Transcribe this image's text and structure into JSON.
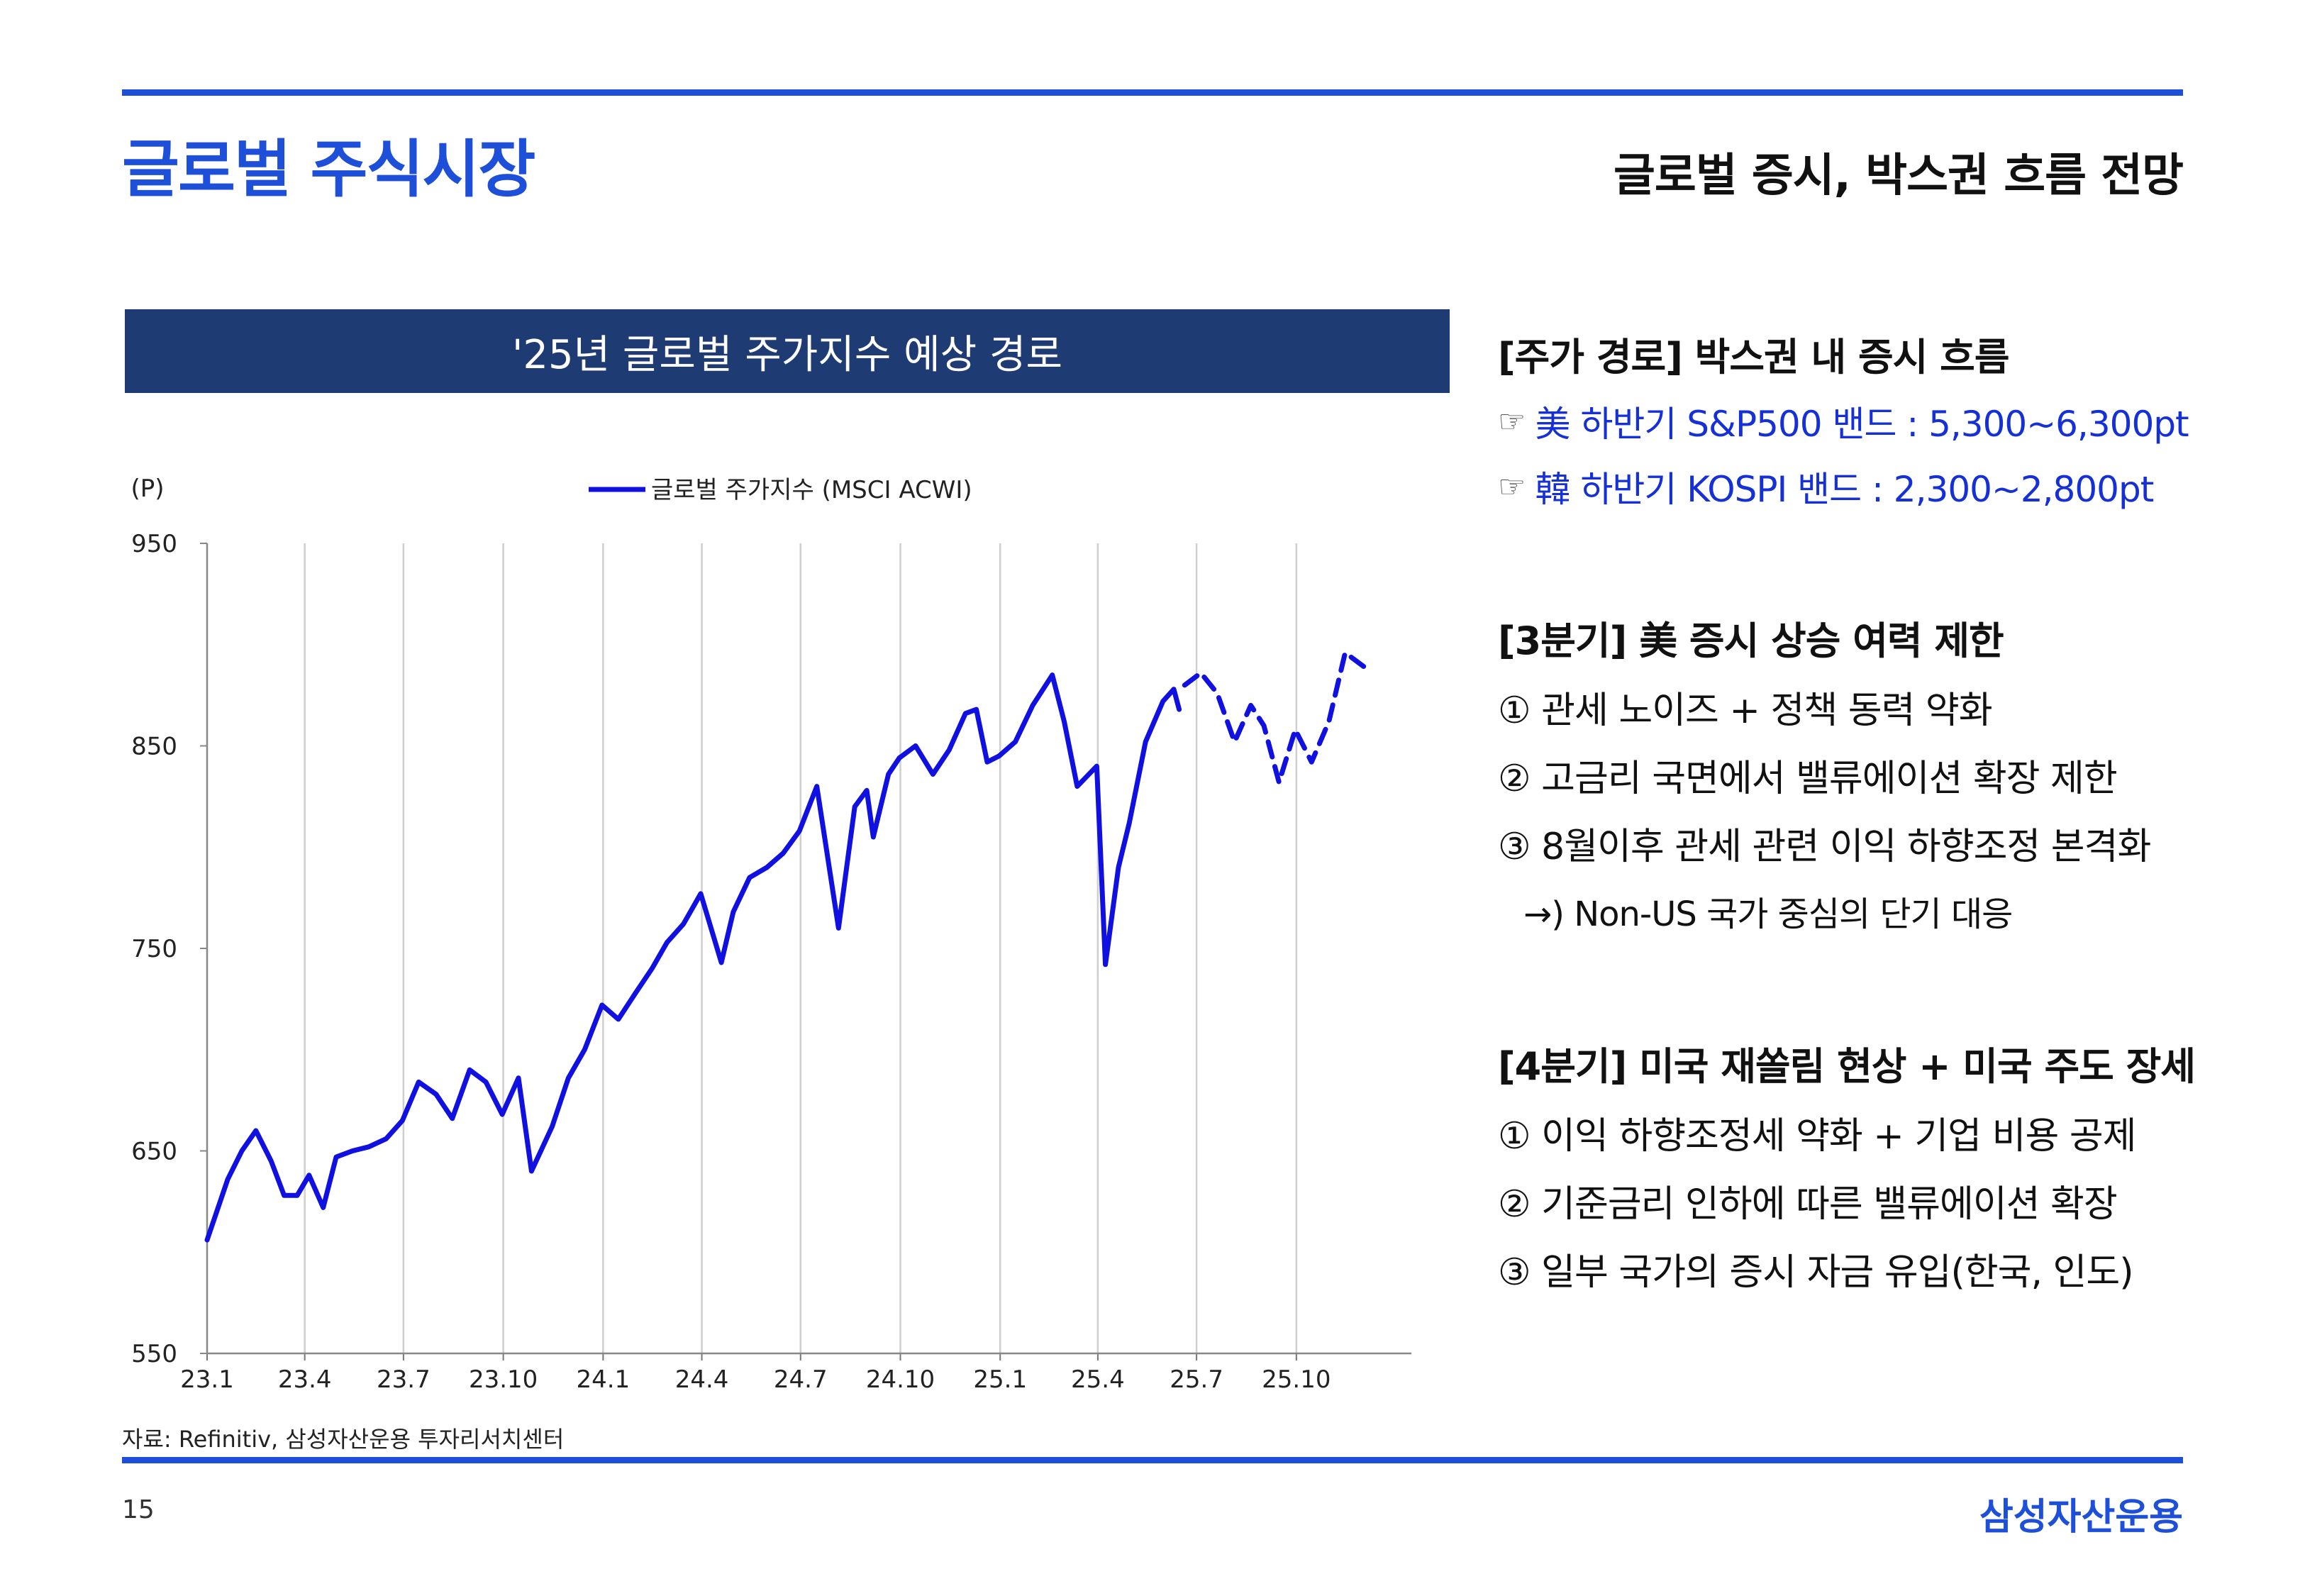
{
  "page": {
    "title": "글로벌 주식시장",
    "subtitle": "글로벌 증시, 박스권 흐름 전망",
    "page_number": "15",
    "brand": "삼성자산운용",
    "source": "자료: Refinitiv, 삼성자산운용 투자리서치센터"
  },
  "colors": {
    "accent": "#1d4fd8",
    "header_bg": "#1f3b73",
    "series_line": "#1010e0",
    "highlight_text": "#1530d6"
  },
  "chart_header": "'25년 글로벌 주가지수 예상 경로",
  "chart_data": {
    "type": "line",
    "title": "'25년 글로벌 주가지수 예상 경로",
    "ylabel": "(P)",
    "ylim": [
      550,
      950
    ],
    "yticks": [
      "950",
      "850",
      "750",
      "650",
      "550"
    ],
    "xticks": [
      "23.1",
      "23.4",
      "23.7",
      "23.10",
      "24.1",
      "24.4",
      "24.7",
      "24.10",
      "25.1",
      "25.4",
      "25.7",
      "25.10"
    ],
    "grid": "vertical",
    "legend_position": "top-center",
    "series": [
      {
        "name": "글로벌 주가지수 (MSCI ACWI)",
        "style": "solid",
        "points": [
          [
            "2023-01-01",
            606
          ],
          [
            "2023-01-20",
            636
          ],
          [
            "2023-02-02",
            650
          ],
          [
            "2023-02-15",
            660
          ],
          [
            "2023-03-01",
            645
          ],
          [
            "2023-03-13",
            628
          ],
          [
            "2023-03-25",
            628
          ],
          [
            "2023-04-05",
            638
          ],
          [
            "2023-04-18",
            622
          ],
          [
            "2023-04-30",
            647
          ],
          [
            "2023-05-15",
            650
          ],
          [
            "2023-05-30",
            652
          ],
          [
            "2023-06-15",
            656
          ],
          [
            "2023-06-30",
            665
          ],
          [
            "2023-07-15",
            684
          ],
          [
            "2023-07-31",
            678
          ],
          [
            "2023-08-15",
            666
          ],
          [
            "2023-08-31",
            690
          ],
          [
            "2023-09-15",
            684
          ],
          [
            "2023-09-30",
            668
          ],
          [
            "2023-10-15",
            686
          ],
          [
            "2023-10-27",
            640
          ],
          [
            "2023-11-15",
            662
          ],
          [
            "2023-11-30",
            686
          ],
          [
            "2023-12-15",
            700
          ],
          [
            "2023-12-31",
            722
          ],
          [
            "2024-01-15",
            715
          ],
          [
            "2024-01-31",
            728
          ],
          [
            "2024-02-15",
            740
          ],
          [
            "2024-02-29",
            753
          ],
          [
            "2024-03-15",
            762
          ],
          [
            "2024-03-31",
            777
          ],
          [
            "2024-04-19",
            743
          ],
          [
            "2024-04-30",
            768
          ],
          [
            "2024-05-15",
            785
          ],
          [
            "2024-05-31",
            790
          ],
          [
            "2024-06-15",
            797
          ],
          [
            "2024-06-30",
            808
          ],
          [
            "2024-07-16",
            830
          ],
          [
            "2024-08-05",
            760
          ],
          [
            "2024-08-20",
            820
          ],
          [
            "2024-08-31",
            828
          ],
          [
            "2024-09-06",
            805
          ],
          [
            "2024-09-20",
            836
          ],
          [
            "2024-09-30",
            844
          ],
          [
            "2024-10-15",
            850
          ],
          [
            "2024-10-31",
            836
          ],
          [
            "2024-11-15",
            848
          ],
          [
            "2024-11-30",
            866
          ],
          [
            "2024-12-10",
            868
          ],
          [
            "2024-12-20",
            842
          ],
          [
            "2024-12-31",
            845
          ],
          [
            "2025-01-15",
            852
          ],
          [
            "2025-01-31",
            870
          ],
          [
            "2025-02-18",
            885
          ],
          [
            "2025-03-01",
            862
          ],
          [
            "2025-03-13",
            830
          ],
          [
            "2025-03-31",
            840
          ],
          [
            "2025-04-08",
            742
          ],
          [
            "2025-04-20",
            790
          ],
          [
            "2025-04-30",
            812
          ],
          [
            "2025-05-15",
            852
          ],
          [
            "2025-05-31",
            872
          ],
          [
            "2025-06-10",
            878
          ],
          [
            "2025-06-15",
            868
          ]
        ]
      },
      {
        "name": "예상 경로",
        "style": "dashed",
        "points": [
          [
            "2025-06-20",
            880
          ],
          [
            "2025-07-05",
            886
          ],
          [
            "2025-07-20",
            876
          ],
          [
            "2025-08-05",
            852
          ],
          [
            "2025-08-20",
            870
          ],
          [
            "2025-09-01",
            860
          ],
          [
            "2025-09-15",
            832
          ],
          [
            "2025-09-30",
            858
          ],
          [
            "2025-10-15",
            842
          ],
          [
            "2025-10-31",
            862
          ],
          [
            "2025-11-15",
            896
          ],
          [
            "2025-12-05",
            888
          ]
        ]
      }
    ]
  },
  "right_panel": {
    "sections": [
      {
        "heading": "[주가 경로] 박스권 내 증시 흐름",
        "items": [
          {
            "mark": "☞",
            "text": "美 하반기 S&P500 밴드 : 5,300~6,300pt"
          },
          {
            "mark": "☞",
            "text": "韓 하반기 KOSPI 밴드 : 2,300~2,800pt"
          }
        ]
      },
      {
        "heading": "[3분기] 美 증시 상승 여력 제한",
        "items": [
          {
            "text": "① 관세 노이즈 + 정책 동력 약화"
          },
          {
            "text": "② 고금리 국면에서 밸류에이션 확장 제한"
          },
          {
            "text": "③ 8월이후 관세 관련 이익 하향조정 본격화"
          },
          {
            "text": "→) Non-US 국가 중심의 단기 대응"
          }
        ]
      },
      {
        "heading": "[4분기] 미국 재쏠림 현상 + 미국 주도 장세",
        "items": [
          {
            "text": "① 이익 하향조정세 약화 + 기업 비용 공제"
          },
          {
            "text": "② 기준금리 인하에 따른 밸류에이션 확장"
          },
          {
            "text": "③ 일부 국가의 증시 자금 유입(한국, 인도)"
          }
        ]
      }
    ]
  }
}
